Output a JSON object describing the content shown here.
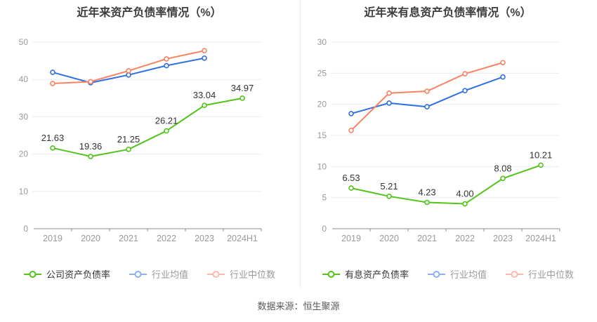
{
  "page": {
    "source_label": "数据来源：恒生聚源"
  },
  "style": {
    "accent_green": "#52c41a",
    "accent_blue": "#2e6fe3",
    "accent_orange": "#fa8260",
    "grid_color": "#e7ecf4",
    "axis_color": "#999999",
    "axis_line_color": "#8c8c8c",
    "label_color": "#333333"
  },
  "chart_data": [
    {
      "type": "line",
      "title": "近年来资产负债率情况（%）",
      "categories": [
        "2019",
        "2020",
        "2021",
        "2022",
        "2023",
        "2024H1"
      ],
      "y_ticks": [
        0,
        10,
        20,
        30,
        40,
        50
      ],
      "ylim": [
        0,
        50
      ],
      "grid": true,
      "legend_position": "bottom",
      "series": [
        {
          "key": "company-debt-ratio",
          "name": "公司资产负债率",
          "color": "#52c41a",
          "show_labels": true,
          "values": [
            21.63,
            19.36,
            21.25,
            26.21,
            33.04,
            34.97
          ],
          "labels": [
            "21.63",
            "19.36",
            "21.25",
            "26.21",
            "33.04",
            "34.97"
          ]
        },
        {
          "key": "industry-average",
          "name": "行业均值",
          "color": "#2e6fe3",
          "show_labels": false,
          "values": [
            41.9,
            39.1,
            41.2,
            43.7,
            45.7
          ]
        },
        {
          "key": "industry-median",
          "name": "行业中位数",
          "color": "#fa8260",
          "show_labels": false,
          "values": [
            38.9,
            39.4,
            42.3,
            45.5,
            47.7
          ]
        }
      ]
    },
    {
      "type": "line",
      "title": "近年来有息资产负债率情况（%）",
      "categories": [
        "2019",
        "2020",
        "2021",
        "2022",
        "2023",
        "2024H1"
      ],
      "y_ticks": [
        0,
        5,
        10,
        15,
        20,
        25,
        30
      ],
      "ylim": [
        0,
        30
      ],
      "grid": true,
      "legend_position": "bottom",
      "series": [
        {
          "key": "interest-bearing-debt-ratio",
          "name": "有息资产负债率",
          "color": "#52c41a",
          "show_labels": true,
          "values": [
            6.53,
            5.21,
            4.23,
            4.0,
            8.08,
            10.21
          ],
          "labels": [
            "6.53",
            "5.21",
            "4.23",
            "4.00",
            "8.08",
            "10.21"
          ]
        },
        {
          "key": "industry-average",
          "name": "行业均值",
          "color": "#2e6fe3",
          "show_labels": false,
          "values": [
            18.5,
            20.2,
            19.6,
            22.2,
            24.4
          ]
        },
        {
          "key": "industry-median",
          "name": "行业中位数",
          "color": "#fa8260",
          "show_labels": false,
          "values": [
            15.8,
            21.8,
            22.1,
            24.9,
            26.7
          ]
        }
      ]
    }
  ]
}
